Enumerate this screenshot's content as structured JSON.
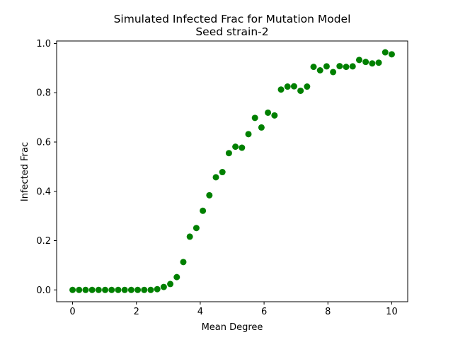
{
  "chart_data": {
    "type": "scatter",
    "title": "Simulated Infected Frac for Mutation Model",
    "subtitle": "Seed strain-2",
    "xlabel": "Mean Degree",
    "ylabel": "Infected Frac",
    "xlim": [
      -0.5,
      10.5
    ],
    "ylim": [
      -0.048,
      1.01
    ],
    "x_ticks": [
      0,
      2,
      4,
      6,
      8,
      10
    ],
    "y_ticks": [
      0.0,
      0.2,
      0.4,
      0.6,
      0.8,
      1.0
    ],
    "x_tick_labels": [
      "0",
      "2",
      "4",
      "6",
      "8",
      "10"
    ],
    "y_tick_labels": [
      "0.0",
      "0.2",
      "0.4",
      "0.6",
      "0.8",
      "1.0"
    ],
    "grid": false,
    "marker_color": "#008000",
    "x": [
      0.0,
      0.204,
      0.408,
      0.612,
      0.816,
      1.02,
      1.224,
      1.429,
      1.633,
      1.837,
      2.041,
      2.245,
      2.449,
      2.653,
      2.857,
      3.061,
      3.265,
      3.469,
      3.673,
      3.878,
      4.082,
      4.286,
      4.49,
      4.694,
      4.898,
      5.102,
      5.306,
      5.51,
      5.714,
      5.918,
      6.122,
      6.327,
      6.531,
      6.735,
      6.939,
      7.143,
      7.347,
      7.551,
      7.755,
      7.959,
      8.163,
      8.367,
      8.571,
      8.776,
      8.98,
      9.184,
      9.388,
      9.592,
      9.796,
      10.0
    ],
    "y": [
      0.0,
      0.0,
      0.0,
      0.0,
      0.0,
      0.0,
      0.0,
      0.0,
      0.0,
      0.0,
      0.0,
      0.0,
      0.0,
      0.003,
      0.012,
      0.024,
      0.052,
      0.113,
      0.216,
      0.251,
      0.321,
      0.384,
      0.457,
      0.478,
      0.555,
      0.581,
      0.577,
      0.632,
      0.698,
      0.659,
      0.719,
      0.708,
      0.813,
      0.825,
      0.826,
      0.808,
      0.825,
      0.905,
      0.891,
      0.907,
      0.884,
      0.908,
      0.905,
      0.907,
      0.933,
      0.925,
      0.919,
      0.922,
      0.964,
      0.956
    ]
  }
}
